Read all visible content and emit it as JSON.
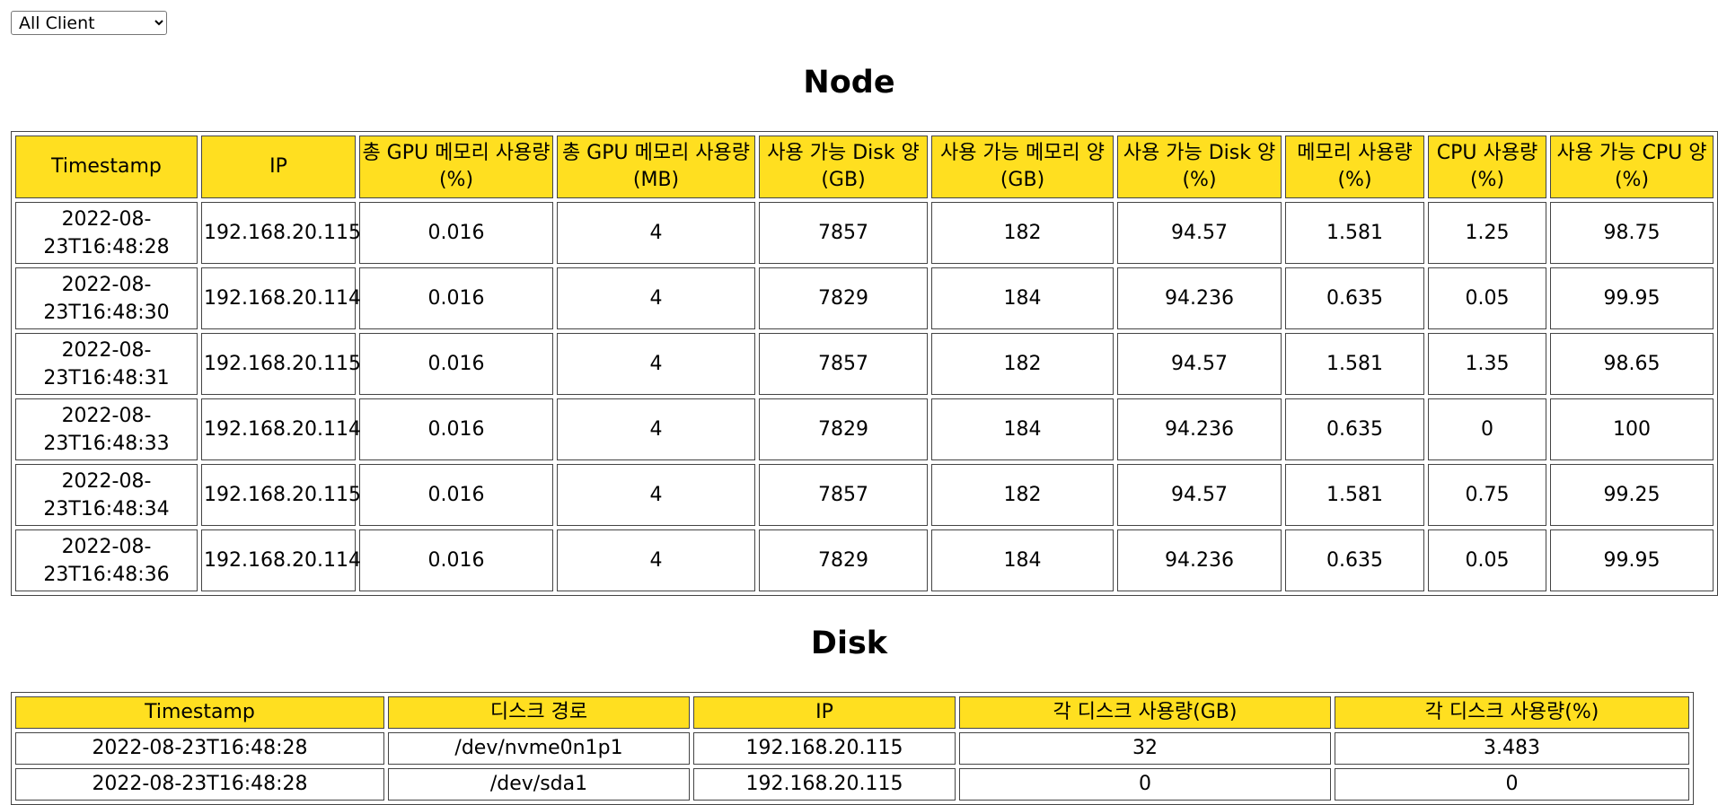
{
  "client_filter": {
    "selected": "All Client",
    "options": [
      "All Client"
    ]
  },
  "node": {
    "title": "Node",
    "headers": [
      "Timestamp",
      "IP",
      "총 GPU 메모리 사용량(%)",
      "총 GPU 메모리 사용량(MB)",
      "사용 가능 Disk 양(GB)",
      "사용 가능 메모리 양(GB)",
      "사용 가능 Disk 양(%)",
      "메모리 사용량(%)",
      "CPU 사용량(%)",
      "사용 가능 CPU 양(%)"
    ],
    "rows": [
      [
        "2022-08-23T16:48:28",
        "192.168.20.115",
        "0.016",
        "4",
        "7857",
        "182",
        "94.57",
        "1.581",
        "1.25",
        "98.75"
      ],
      [
        "2022-08-23T16:48:30",
        "192.168.20.114",
        "0.016",
        "4",
        "7829",
        "184",
        "94.236",
        "0.635",
        "0.05",
        "99.95"
      ],
      [
        "2022-08-23T16:48:31",
        "192.168.20.115",
        "0.016",
        "4",
        "7857",
        "182",
        "94.57",
        "1.581",
        "1.35",
        "98.65"
      ],
      [
        "2022-08-23T16:48:33",
        "192.168.20.114",
        "0.016",
        "4",
        "7829",
        "184",
        "94.236",
        "0.635",
        "0",
        "100"
      ],
      [
        "2022-08-23T16:48:34",
        "192.168.20.115",
        "0.016",
        "4",
        "7857",
        "182",
        "94.57",
        "1.581",
        "0.75",
        "99.25"
      ],
      [
        "2022-08-23T16:48:36",
        "192.168.20.114",
        "0.016",
        "4",
        "7829",
        "184",
        "94.236",
        "0.635",
        "0.05",
        "99.95"
      ]
    ]
  },
  "disk": {
    "title": "Disk",
    "headers": [
      "Timestamp",
      "디스크 경로",
      "IP",
      "각 디스크 사용량(GB)",
      "각 디스크 사용량(%)"
    ],
    "rows": [
      [
        "2022-08-23T16:48:28",
        "/dev/nvme0n1p1",
        "192.168.20.115",
        "32",
        "3.483"
      ],
      [
        "2022-08-23T16:48:28",
        "/dev/sda1",
        "192.168.20.115",
        "0",
        "0"
      ]
    ]
  },
  "colors": {
    "header_bg": "#ffdf20",
    "border": "#444444"
  }
}
